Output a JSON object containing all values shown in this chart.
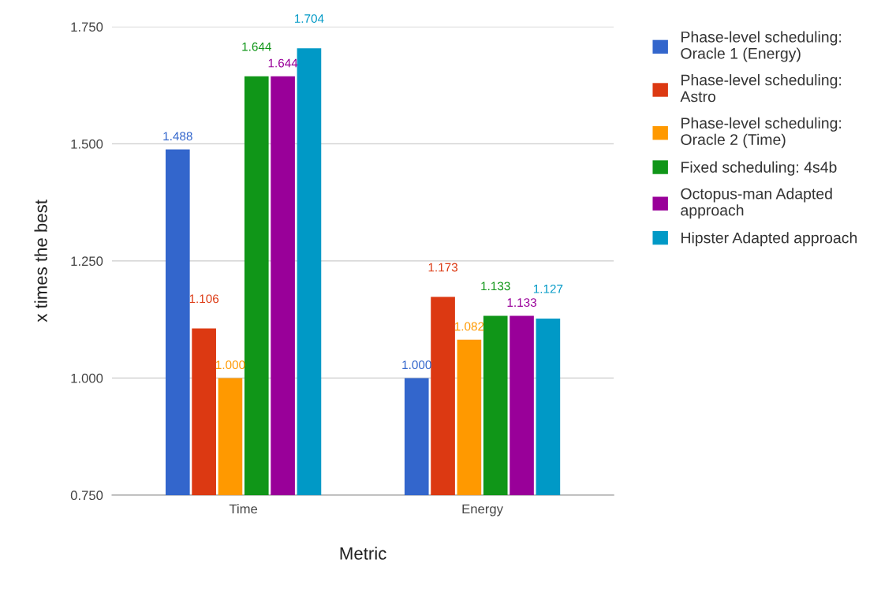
{
  "chart_data": {
    "type": "bar",
    "xlabel": "Metric",
    "ylabel": "x times the best",
    "categories": [
      "Time",
      "Energy"
    ],
    "series": [
      {
        "name": "Phase-level scheduling: Oracle 1 (Energy)",
        "color": "#3366cc",
        "values": [
          1.488,
          1.0
        ],
        "value_labels": [
          "1.488",
          "1.000"
        ]
      },
      {
        "name": "Phase-level scheduling: Astro",
        "color": "#dc3912",
        "values": [
          1.106,
          1.173
        ],
        "value_labels": [
          "1.106",
          "1.173"
        ]
      },
      {
        "name": "Phase-level scheduling: Oracle 2 (Time)",
        "color": "#ff9900",
        "values": [
          1.0,
          1.082
        ],
        "value_labels": [
          "1.000",
          "1.082"
        ]
      },
      {
        "name": "Fixed scheduling: 4s4b",
        "color": "#109618",
        "values": [
          1.644,
          1.133
        ],
        "value_labels": [
          "1.644",
          "1.133"
        ]
      },
      {
        "name": "Octopus-man Adapted approach",
        "color": "#990099",
        "values": [
          1.644,
          1.133
        ],
        "value_labels": [
          "1.644",
          "1.133"
        ]
      },
      {
        "name": "Hipster Adapted approach",
        "color": "#0099c6",
        "values": [
          1.704,
          1.127
        ],
        "value_labels": [
          "1.704",
          "1.127"
        ]
      }
    ],
    "ylim": [
      0.75,
      1.75
    ],
    "yticks": [
      {
        "value": 0.75,
        "label": "0.750"
      },
      {
        "value": 1.0,
        "label": "1.000"
      },
      {
        "value": 1.25,
        "label": "1.250"
      },
      {
        "value": 1.5,
        "label": "1.500"
      },
      {
        "value": 1.75,
        "label": "1.750"
      }
    ],
    "grid": "y",
    "legend": "top right"
  }
}
